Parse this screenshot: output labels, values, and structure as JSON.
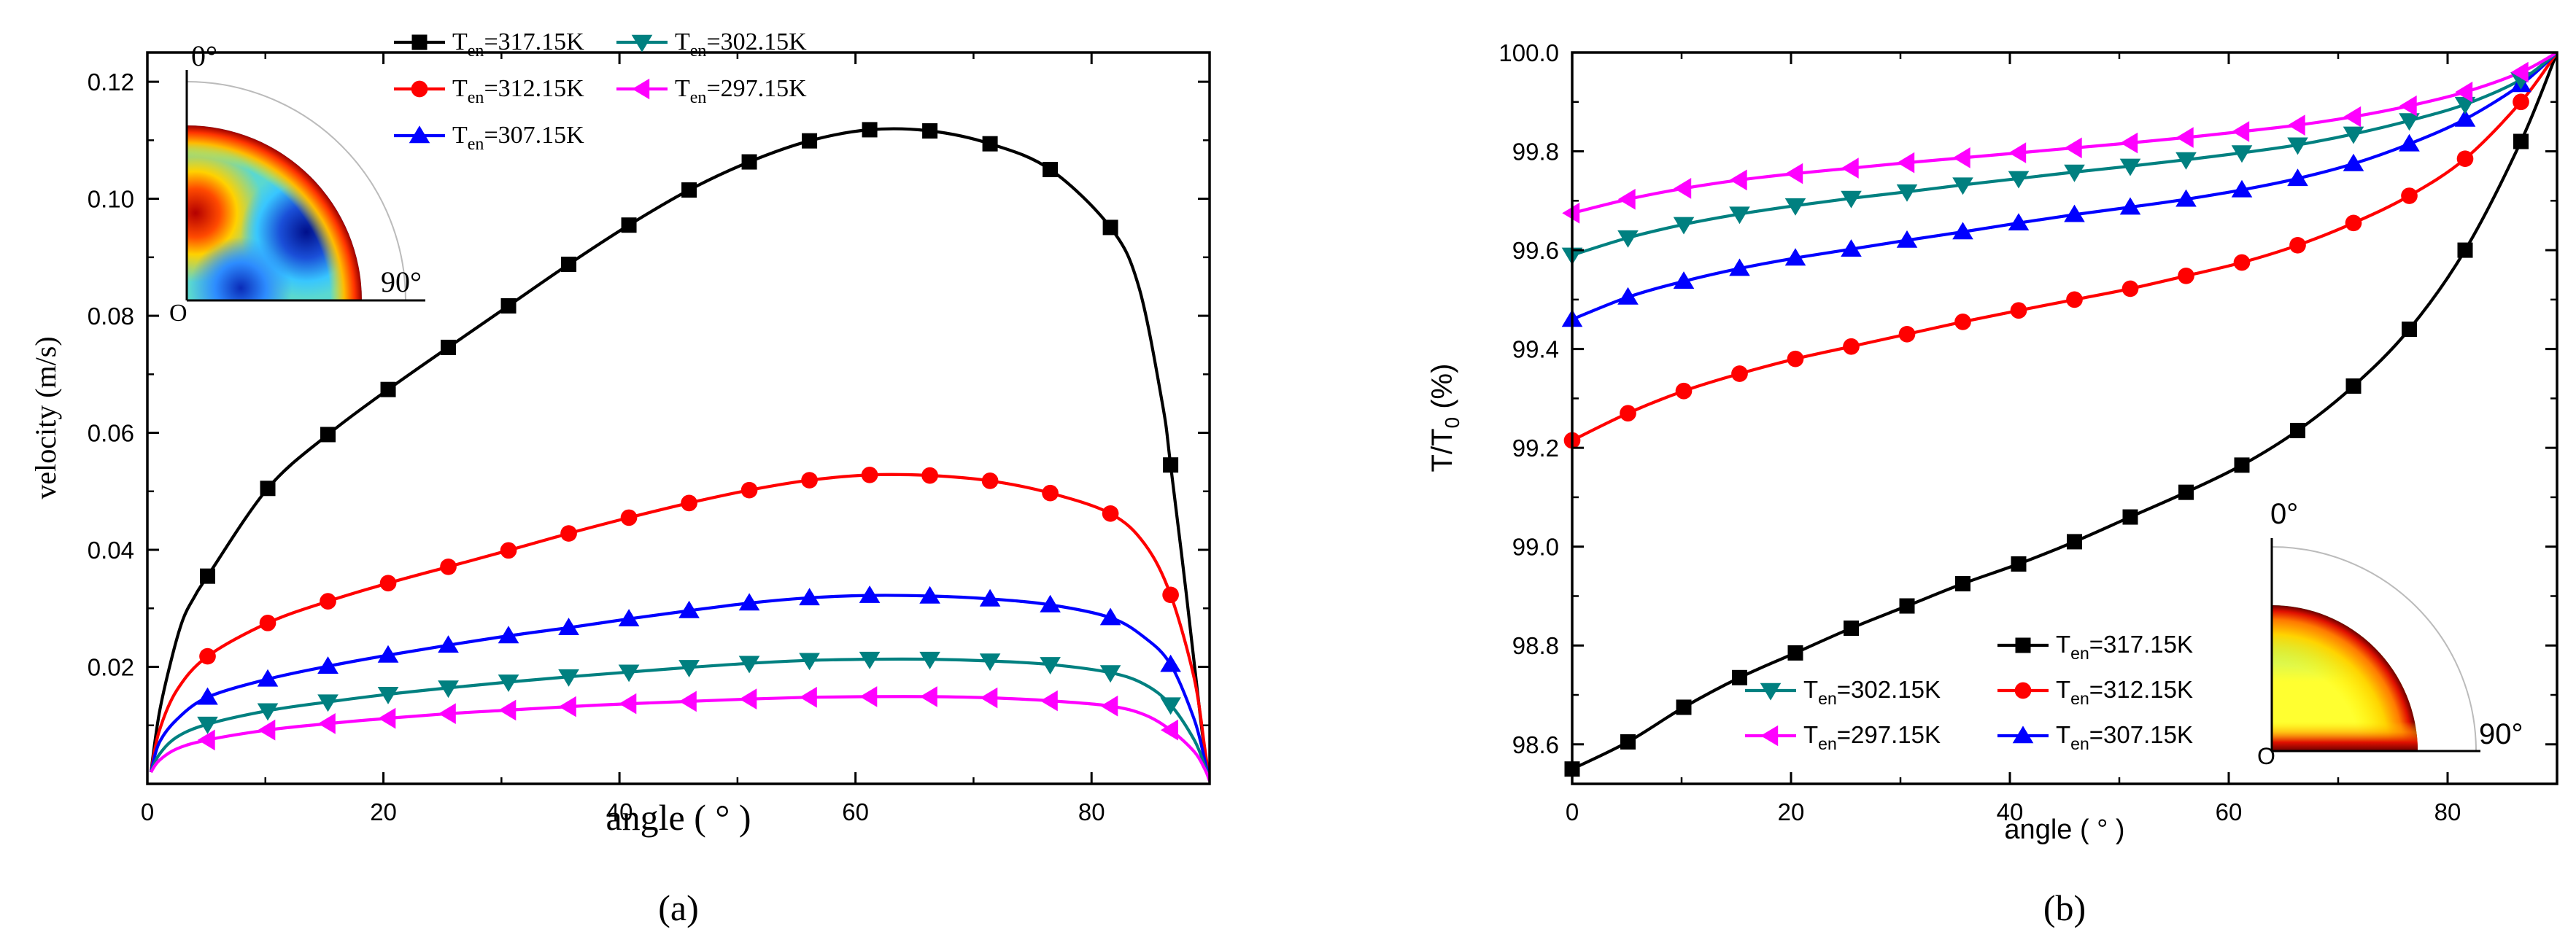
{
  "chart_data": [
    {
      "panel_label": "(a)",
      "type": "line",
      "xlabel": "angle ( ° )",
      "ylabel": "velocity (m/s)",
      "xlim": [
        0,
        90
      ],
      "ylim": [
        0,
        0.125
      ],
      "xticks": [
        0,
        20,
        40,
        60,
        80
      ],
      "xtick_labels": [
        "0",
        "20",
        "40",
        "60",
        "80"
      ],
      "yticks": [
        0.02,
        0.04,
        0.06,
        0.08,
        0.1,
        0.12
      ],
      "ytick_labels": [
        "0.02",
        "0.04",
        "0.06",
        "0.08",
        "0.10",
        "0.12"
      ],
      "marker_x": [
        5.1,
        10.2,
        15.3,
        20.4,
        25.5,
        30.6,
        35.7,
        40.8,
        45.9,
        51.0,
        56.1,
        61.2,
        66.3,
        71.4,
        76.5,
        81.6,
        86.7
      ],
      "series": [
        {
          "name": "T_en=317.15K",
          "sub": "en",
          "value_label": "=317.15K",
          "color": "#000000",
          "marker": "square",
          "x": [
            0.3,
            1,
            2,
            3,
            4,
            5.1,
            10.2,
            15.3,
            20.4,
            25.5,
            30.6,
            35.7,
            40.8,
            45.9,
            51.0,
            56.1,
            61.2,
            66.3,
            71.4,
            76.5,
            81.6,
            84,
            86,
            86.7,
            88,
            89.3,
            90
          ],
          "y": [
            0.002,
            0.012,
            0.021,
            0.028,
            0.032,
            0.0355,
            0.0505,
            0.0597,
            0.0674,
            0.0746,
            0.0817,
            0.0888,
            0.0955,
            0.1015,
            0.1063,
            0.1099,
            0.1118,
            0.1116,
            0.1094,
            0.105,
            0.0951,
            0.085,
            0.065,
            0.0545,
            0.033,
            0.01,
            0.0005
          ]
        },
        {
          "name": "T_en=312.15K",
          "sub": "en",
          "value_label": "=312.15K",
          "color": "#ff0000",
          "marker": "circle",
          "x": [
            0.3,
            1,
            2.5,
            5.1,
            10.2,
            15.3,
            20.4,
            25.5,
            30.6,
            35.7,
            40.8,
            45.9,
            51.0,
            56.1,
            61.2,
            66.3,
            71.4,
            76.5,
            81.6,
            84.5,
            86.7,
            88.7,
            89.6,
            90
          ],
          "y": [
            0.002,
            0.009,
            0.016,
            0.0218,
            0.0275,
            0.0312,
            0.0343,
            0.0371,
            0.0399,
            0.0428,
            0.0455,
            0.048,
            0.0502,
            0.0519,
            0.0528,
            0.0527,
            0.0518,
            0.0497,
            0.0462,
            0.041,
            0.0323,
            0.018,
            0.006,
            0.0005
          ]
        },
        {
          "name": "T_en=307.15K",
          "sub": "en",
          "value_label": "=307.15K",
          "color": "#0000ff",
          "marker": "triangle-up",
          "x": [
            0.3,
            1,
            2.5,
            5.1,
            10.2,
            15.3,
            20.4,
            25.5,
            30.6,
            35.7,
            40.8,
            45.9,
            51.0,
            56.1,
            61.2,
            66.3,
            71.4,
            76.5,
            81.6,
            84.5,
            86.7,
            88.7,
            89.6,
            90
          ],
          "y": [
            0.002,
            0.007,
            0.011,
            0.0148,
            0.0179,
            0.0201,
            0.022,
            0.0237,
            0.0253,
            0.0267,
            0.0282,
            0.0296,
            0.0309,
            0.0318,
            0.0322,
            0.0321,
            0.0316,
            0.0306,
            0.0284,
            0.025,
            0.0204,
            0.011,
            0.004,
            0.0005
          ]
        },
        {
          "name": "T_en=302.15K",
          "sub": "en",
          "value_label": "=302.15K",
          "color": "#008080",
          "marker": "triangle-down",
          "x": [
            0.3,
            1,
            2.5,
            5.1,
            10.2,
            15.3,
            20.4,
            25.5,
            30.6,
            35.7,
            40.8,
            45.9,
            51.0,
            56.1,
            61.2,
            66.3,
            71.4,
            76.5,
            81.6,
            84.5,
            86.7,
            88.7,
            89.6,
            90
          ],
          "y": [
            0.002,
            0.005,
            0.008,
            0.0102,
            0.0125,
            0.014,
            0.0153,
            0.0164,
            0.0174,
            0.0183,
            0.0191,
            0.0199,
            0.0206,
            0.0211,
            0.0213,
            0.0213,
            0.021,
            0.0204,
            0.019,
            0.017,
            0.0135,
            0.0075,
            0.003,
            0.0005
          ]
        },
        {
          "name": "T_en=297.15K",
          "sub": "en",
          "value_label": "=297.15K",
          "color": "#ff00ff",
          "marker": "triangle-left",
          "x": [
            0.3,
            1,
            2.5,
            5.1,
            10.2,
            15.3,
            20.4,
            25.5,
            30.6,
            35.7,
            40.8,
            45.9,
            51.0,
            56.1,
            61.2,
            66.3,
            71.4,
            76.5,
            81.6,
            84.5,
            86.7,
            88.7,
            89.6,
            90
          ],
          "y": [
            0.002,
            0.004,
            0.006,
            0.0075,
            0.0092,
            0.0103,
            0.0112,
            0.012,
            0.0126,
            0.0132,
            0.0137,
            0.0141,
            0.0145,
            0.0148,
            0.0149,
            0.0149,
            0.0147,
            0.0142,
            0.0133,
            0.0118,
            0.0092,
            0.0055,
            0.0025,
            0.0005
          ]
        }
      ],
      "inset": {
        "label_top": "0°",
        "label_right": "90°",
        "label_origin": "O",
        "colormap": "jet"
      }
    },
    {
      "panel_label": "(b)",
      "type": "line",
      "xlabel": "angle ( ° )",
      "ylabel": "T/T",
      "ylabel_sub": "0",
      "ylabel_suffix": " (%)",
      "xlim": [
        0,
        90
      ],
      "ylim": [
        98.52,
        100.0
      ],
      "xticks": [
        0,
        20,
        40,
        60,
        80
      ],
      "xtick_labels": [
        "0",
        "20",
        "40",
        "60",
        "80"
      ],
      "yticks": [
        98.6,
        98.8,
        99.0,
        99.2,
        99.4,
        99.6,
        99.8,
        100.0
      ],
      "ytick_labels": [
        "98.6",
        "98.8",
        "99.0",
        "99.2",
        "99.4",
        "99.6",
        "99.8",
        "100.0"
      ],
      "marker_x": [
        0,
        5.1,
        10.2,
        15.3,
        20.4,
        25.5,
        30.6,
        35.7,
        40.8,
        45.9,
        51.0,
        56.1,
        61.2,
        66.3,
        71.4,
        76.5,
        81.6,
        86.7
      ],
      "series": [
        {
          "name": "T_en=317.15K",
          "sub": "en",
          "value_label": "=317.15K",
          "color": "#000000",
          "marker": "square",
          "x": [
            0,
            5.1,
            10.2,
            15.3,
            20.4,
            25.5,
            30.6,
            35.7,
            40.8,
            45.9,
            51.0,
            56.1,
            61.2,
            66.3,
            71.4,
            76.5,
            81.6,
            86.7,
            90
          ],
          "y": [
            98.55,
            98.605,
            98.675,
            98.735,
            98.785,
            98.835,
            98.88,
            98.925,
            98.965,
            99.01,
            99.06,
            99.11,
            99.165,
            99.235,
            99.325,
            99.44,
            99.6,
            99.82,
            100.0
          ]
        },
        {
          "name": "T_en=312.15K",
          "sub": "en",
          "value_label": "=312.15K",
          "color": "#ff0000",
          "marker": "circle",
          "x": [
            0,
            5.1,
            10.2,
            15.3,
            20.4,
            25.5,
            30.6,
            35.7,
            40.8,
            45.9,
            51.0,
            56.1,
            61.2,
            66.3,
            71.4,
            76.5,
            81.6,
            86.7,
            90
          ],
          "y": [
            99.215,
            99.27,
            99.315,
            99.35,
            99.38,
            99.405,
            99.43,
            99.455,
            99.478,
            99.5,
            99.522,
            99.548,
            99.575,
            99.61,
            99.655,
            99.71,
            99.785,
            99.9,
            100.0
          ]
        },
        {
          "name": "T_en=307.15K",
          "sub": "en",
          "value_label": "=307.15K",
          "color": "#0000ff",
          "marker": "triangle-up",
          "x": [
            0,
            5.1,
            10.2,
            15.3,
            20.4,
            25.5,
            30.6,
            35.7,
            40.8,
            45.9,
            51.0,
            56.1,
            61.2,
            66.3,
            71.4,
            76.5,
            81.6,
            86.7,
            90
          ],
          "y": [
            99.46,
            99.505,
            99.537,
            99.563,
            99.584,
            99.602,
            99.62,
            99.637,
            99.655,
            99.672,
            99.687,
            99.703,
            99.722,
            99.745,
            99.775,
            99.815,
            99.865,
            99.935,
            100.0
          ]
        },
        {
          "name": "T_en=302.15K",
          "sub": "en",
          "value_label": "=302.15K",
          "color": "#008080",
          "marker": "triangle-down",
          "x": [
            0,
            5.1,
            10.2,
            15.3,
            20.4,
            25.5,
            30.6,
            35.7,
            40.8,
            45.9,
            51.0,
            56.1,
            61.2,
            66.3,
            71.4,
            76.5,
            81.6,
            86.7,
            90
          ],
          "y": [
            99.59,
            99.625,
            99.652,
            99.673,
            99.69,
            99.705,
            99.718,
            99.732,
            99.745,
            99.758,
            99.77,
            99.783,
            99.797,
            99.813,
            99.835,
            99.862,
            99.895,
            99.945,
            100.0
          ]
        },
        {
          "name": "T_en=297.15K",
          "sub": "en",
          "value_label": "=297.15K",
          "color": "#ff00ff",
          "marker": "triangle-left",
          "x": [
            0,
            5.1,
            10.2,
            15.3,
            20.4,
            25.5,
            30.6,
            35.7,
            40.8,
            45.9,
            51.0,
            56.1,
            61.2,
            66.3,
            71.4,
            76.5,
            81.6,
            86.7,
            90
          ],
          "y": [
            99.675,
            99.703,
            99.725,
            99.742,
            99.755,
            99.766,
            99.777,
            99.787,
            99.797,
            99.807,
            99.817,
            99.828,
            99.84,
            99.853,
            99.87,
            99.892,
            99.92,
            99.96,
            100.0
          ]
        }
      ],
      "inset": {
        "label_top": "0°",
        "label_right": "90°",
        "label_origin": "O",
        "colormap": "hot"
      }
    }
  ]
}
